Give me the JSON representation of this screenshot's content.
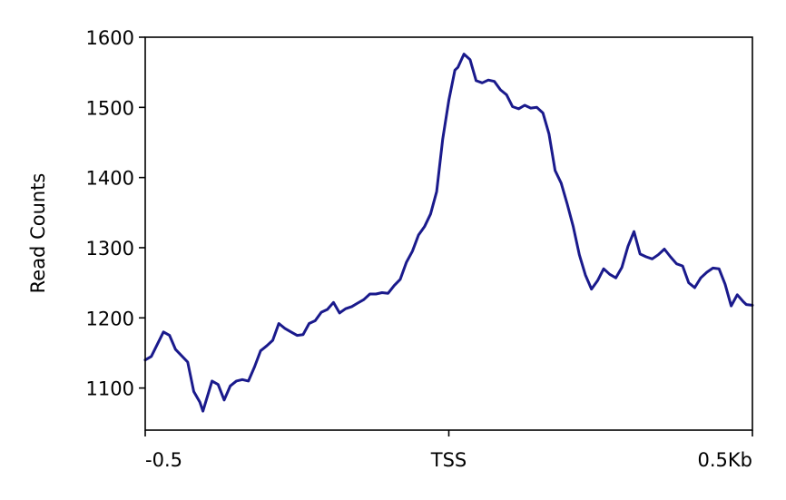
{
  "chart_data": {
    "type": "line",
    "title": "",
    "xlabel": "",
    "ylabel": "Read Counts",
    "xlim": [
      -0.5,
      0.5
    ],
    "ylim": [
      1040,
      1600
    ],
    "x_ticks": [
      {
        "value": -0.5,
        "label": "-0.5"
      },
      {
        "value": 0.0,
        "label": "TSS"
      },
      {
        "value": 0.5,
        "label": "0.5Kb"
      }
    ],
    "y_ticks": [
      1100,
      1200,
      1300,
      1400,
      1500,
      1600
    ],
    "grid": false,
    "line_color": "#1a1a8c",
    "series": [
      {
        "x": [
          -0.5,
          -0.49,
          -0.47,
          -0.46,
          -0.45,
          -0.43,
          -0.42,
          -0.41,
          -0.405,
          -0.39,
          -0.38,
          -0.37,
          -0.36,
          -0.35,
          -0.34,
          -0.33,
          -0.32,
          -0.31,
          -0.3,
          -0.29,
          -0.28,
          -0.27,
          -0.26,
          -0.25,
          -0.24,
          -0.23,
          -0.22,
          -0.21,
          -0.2,
          -0.19,
          -0.18,
          -0.17,
          -0.16,
          -0.15,
          -0.14,
          -0.13,
          -0.12,
          -0.11,
          -0.1,
          -0.09,
          -0.08,
          -0.07,
          -0.06,
          -0.05,
          -0.04,
          -0.03,
          -0.02,
          -0.01,
          0.0,
          0.01,
          0.015,
          0.025,
          0.035,
          0.045,
          0.055,
          0.065,
          0.075,
          0.085,
          0.095,
          0.105,
          0.115,
          0.125,
          0.135,
          0.145,
          0.155,
          0.165,
          0.175,
          0.185,
          0.195,
          0.205,
          0.215,
          0.225,
          0.235,
          0.245,
          0.255,
          0.265,
          0.275,
          0.285,
          0.295,
          0.305,
          0.315,
          0.325,
          0.335,
          0.345,
          0.355,
          0.365,
          0.375,
          0.385,
          0.395,
          0.405,
          0.415,
          0.425,
          0.435,
          0.445,
          0.455,
          0.465,
          0.475,
          0.485,
          0.49,
          0.5
        ],
        "values": [
          1140,
          1145,
          1180,
          1175,
          1155,
          1137,
          1095,
          1080,
          1067,
          1110,
          1105,
          1083,
          1103,
          1110,
          1112,
          1110,
          1130,
          1153,
          1160,
          1168,
          1192,
          1185,
          1180,
          1175,
          1176,
          1192,
          1196,
          1208,
          1212,
          1222,
          1207,
          1213,
          1216,
          1221,
          1226,
          1234,
          1234,
          1236,
          1235,
          1246,
          1255,
          1279,
          1295,
          1318,
          1330,
          1348,
          1380,
          1455,
          1510,
          1553,
          1557,
          1576,
          1568,
          1538,
          1535,
          1539,
          1537,
          1525,
          1518,
          1501,
          1498,
          1503,
          1499,
          1500,
          1492,
          1462,
          1410,
          1392,
          1362,
          1330,
          1290,
          1261,
          1241,
          1253,
          1270,
          1262,
          1257,
          1272,
          1302,
          1323,
          1291,
          1287,
          1284,
          1290,
          1298,
          1287,
          1277,
          1274,
          1250,
          1243,
          1257,
          1265,
          1271,
          1270,
          1248,
          1217,
          1233,
          1223,
          1219,
          1218
        ]
      }
    ]
  }
}
